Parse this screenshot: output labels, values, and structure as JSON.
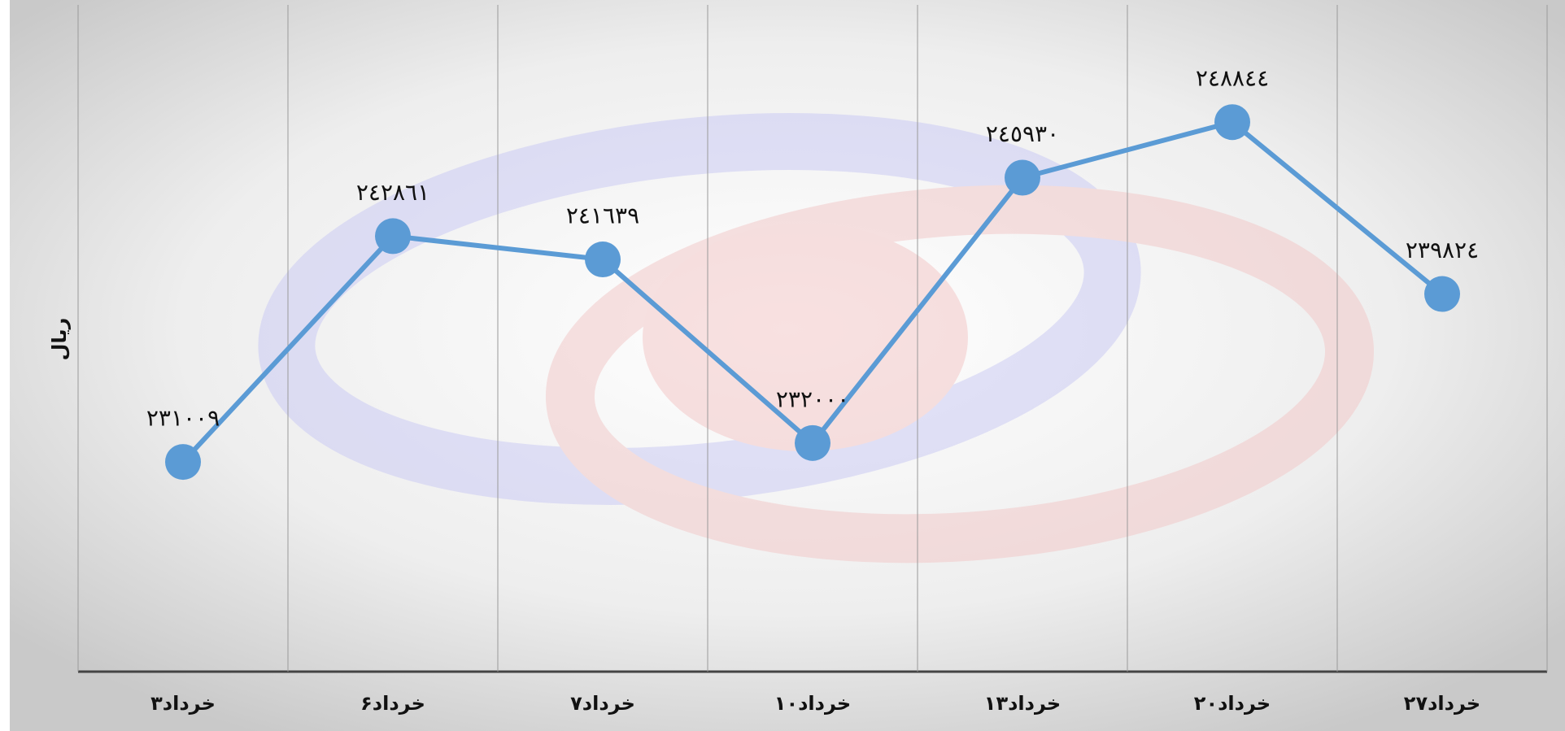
{
  "chart_data": {
    "type": "line",
    "y_label": "ریال",
    "categories": [
      "۳خرداد",
      "۶خرداد",
      "۷خرداد",
      "۱۰خرداد",
      "۱۳خرداد",
      "۲۰خرداد",
      "۲۷خرداد"
    ],
    "series": [
      {
        "name": null,
        "color": "#5b9bd5",
        "values": [
          231009,
          242861,
          241639,
          232000,
          245930,
          248844,
          239824
        ],
        "value_labels": [
          "٢٣١٠٠٩",
          "٢٤٢٨٦١",
          "٢٤١٦٣٩",
          "٢٣٢٠٠٠",
          "٢٤٥٩٣٠",
          "٢٤٨٨٤٤",
          "٢٣٩٨٢٤"
        ]
      }
    ],
    "ylim": [
      220000,
      255000
    ]
  }
}
